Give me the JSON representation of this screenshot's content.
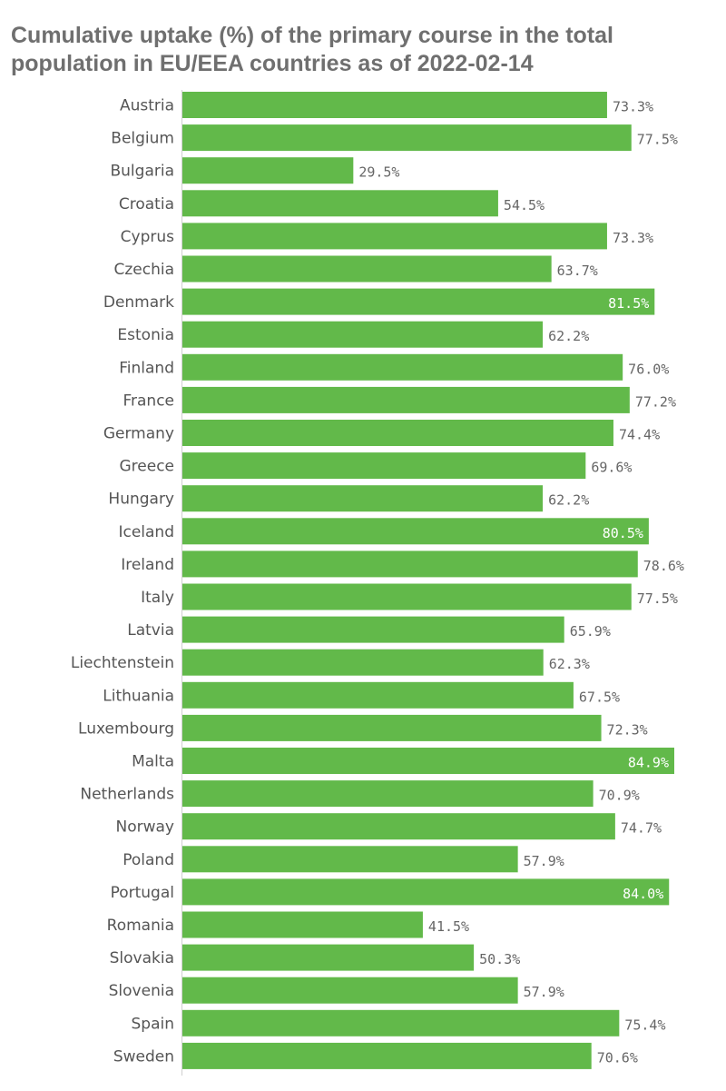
{
  "chart_data": {
    "type": "bar",
    "orientation": "horizontal",
    "title": "Cumulative uptake (%) of the primary course in the total population in EU/EEA countries as of 2022-02-14",
    "categories": [
      "Austria",
      "Belgium",
      "Bulgaria",
      "Croatia",
      "Cyprus",
      "Czechia",
      "Denmark",
      "Estonia",
      "Finland",
      "France",
      "Germany",
      "Greece",
      "Hungary",
      "Iceland",
      "Ireland",
      "Italy",
      "Latvia",
      "Liechtenstein",
      "Lithuania",
      "Luxembourg",
      "Malta",
      "Netherlands",
      "Norway",
      "Poland",
      "Portugal",
      "Romania",
      "Slovakia",
      "Slovenia",
      "Spain",
      "Sweden"
    ],
    "values": [
      73.3,
      77.5,
      29.5,
      54.5,
      73.3,
      63.7,
      81.5,
      62.2,
      76.0,
      77.2,
      74.4,
      69.6,
      62.2,
      80.5,
      78.6,
      77.5,
      65.9,
      62.3,
      67.5,
      72.3,
      84.9,
      70.9,
      74.7,
      57.9,
      84.0,
      41.5,
      50.3,
      57.9,
      75.4,
      70.6
    ],
    "value_labels": [
      "73.3%",
      "77.5%",
      "29.5%",
      "54.5%",
      "73.3%",
      "63.7%",
      "81.5%",
      "62.2%",
      "76.0%",
      "77.2%",
      "74.4%",
      "69.6%",
      "62.2%",
      "80.5%",
      "78.6%",
      "77.5%",
      "65.9%",
      "62.3%",
      "67.5%",
      "72.3%",
      "84.9%",
      "70.9%",
      "74.7%",
      "57.9%",
      "84.0%",
      "41.5%",
      "50.3%",
      "57.9%",
      "75.4%",
      "70.6%"
    ],
    "unit": "%",
    "xlim": [
      0,
      88
    ],
    "grid": false,
    "legend": "none",
    "bar_color": "#62b94a",
    "label_color_outside": "#666666",
    "label_color_inside": "#ffffff",
    "inside_label_threshold": 80
  }
}
